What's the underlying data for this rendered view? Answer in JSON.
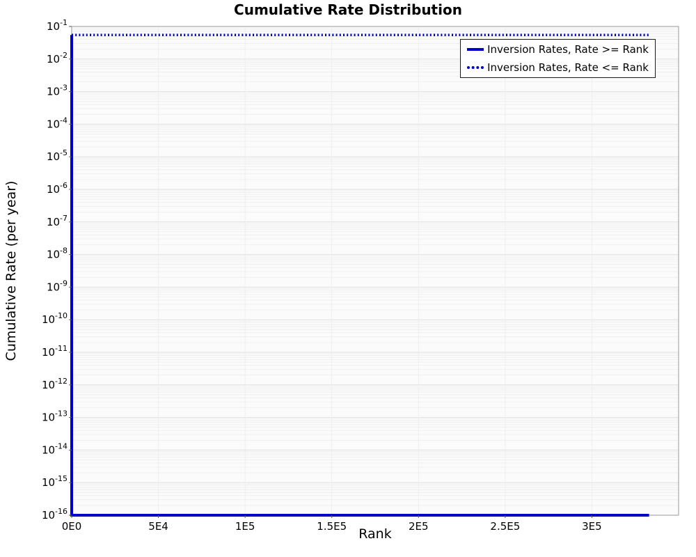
{
  "chart_data": {
    "type": "line",
    "title": "Cumulative Rate Distribution",
    "xlabel": "Rank",
    "ylabel": "Cumulative Rate (per year)",
    "x_scale": "linear",
    "y_scale": "log",
    "xlim": [
      0,
      350000
    ],
    "ylim": [
      1e-16,
      0.1
    ],
    "ylim_exponents": [
      -16,
      -1
    ],
    "grid": true,
    "legend_position": "top-right",
    "x_ticks": [
      {
        "value": 0,
        "label": "0E0"
      },
      {
        "value": 50000,
        "label": "5E4"
      },
      {
        "value": 100000,
        "label": "1E5"
      },
      {
        "value": 150000,
        "label": "1.5E5"
      },
      {
        "value": 200000,
        "label": "2E5"
      },
      {
        "value": 250000,
        "label": "2.5E5"
      },
      {
        "value": 300000,
        "label": "3E5"
      }
    ],
    "y_tick_exponents": [
      -1,
      -2,
      -3,
      -4,
      -5,
      -6,
      -7,
      -8,
      -9,
      -10,
      -11,
      -12,
      -13,
      -14,
      -15,
      -16
    ],
    "series": [
      {
        "name": "Inversion Rates, Rate >= Rank",
        "style": "solid",
        "color": "#0000cc",
        "points": [
          [
            0,
            0.055
          ],
          [
            0,
            1e-16
          ],
          [
            333000,
            1e-16
          ]
        ]
      },
      {
        "name": "Inversion Rates, Rate <= Rank",
        "style": "dotted",
        "color": "#0000cc",
        "points": [
          [
            0,
            0.055
          ],
          [
            333000,
            0.055
          ]
        ]
      }
    ]
  },
  "colors": {
    "line": "#0000cc",
    "plot_bg": "#fbfbfb",
    "grid_minor": "#ececec",
    "grid_major": "#dfdfdf",
    "border": "#9a9a9a",
    "tick": "#555555",
    "text": "#000000"
  }
}
